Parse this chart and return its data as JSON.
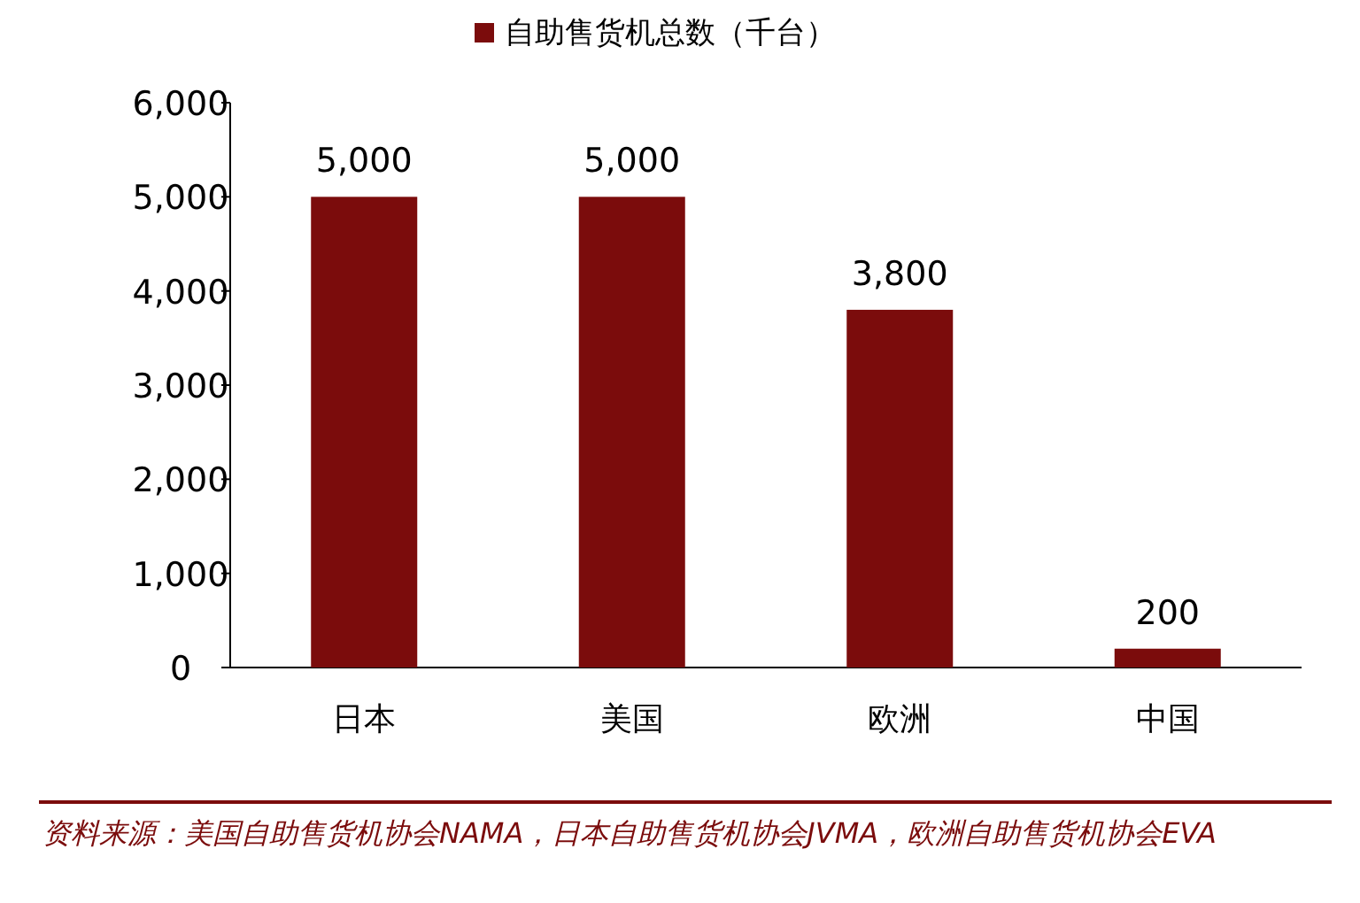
{
  "chart_data": {
    "type": "bar",
    "legend": "top",
    "categories": [
      "日本",
      "美国",
      "欧洲",
      "中国"
    ],
    "series": [
      {
        "name": "自助售货机总数（千台）",
        "color": "#7b0c0c",
        "values": [
          5000,
          5000,
          3800,
          200
        ],
        "value_labels": [
          "5,000",
          "5,000",
          "3,800",
          "200"
        ]
      }
    ],
    "ylim": [
      0,
      6000
    ],
    "yticks": [
      0,
      {
        "value": 1000,
        "label": "1,000"
      },
      {
        "value": 2000,
        "label": "2,000"
      },
      {
        "value": 3000,
        "label": "3,000"
      },
      {
        "value": 4000,
        "label": "4,000"
      },
      {
        "value": 5000,
        "label": "5,000"
      },
      {
        "value": 6000,
        "label": "6,000"
      }
    ],
    "annotations": [
      "资料来源：美国自助售货机协会NAMA，日本自助售货机协会JVMA，欧洲自助售货机协会EVA"
    ]
  }
}
